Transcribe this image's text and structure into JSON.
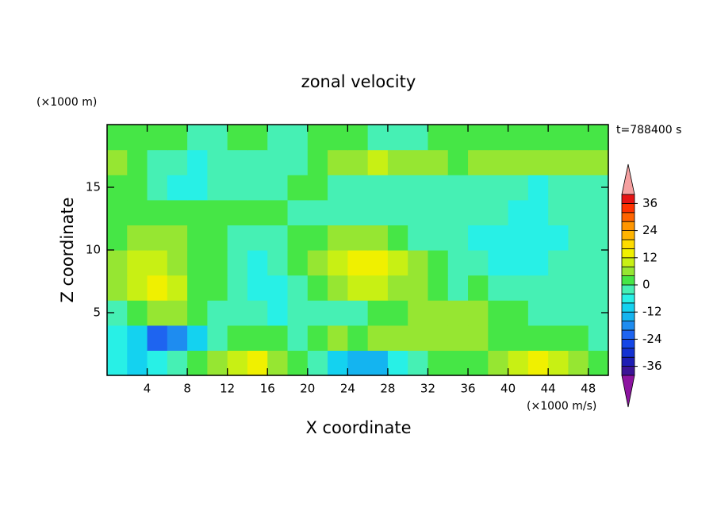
{
  "chart_data": {
    "type": "contour",
    "title": "zonal velocity",
    "xlabel": "X coordinate",
    "ylabel": "Z coordinate",
    "y_unit": "(×1000 m)",
    "colorbar_unit": "(×1000 m/s)",
    "annotation": "t=788400 s",
    "x": [
      1,
      3,
      5,
      7,
      9,
      11,
      13,
      15,
      17,
      19,
      21,
      23,
      25,
      27,
      29,
      31,
      33,
      35,
      37,
      39,
      41,
      43,
      45,
      47,
      49
    ],
    "y": [
      1,
      3,
      5,
      7,
      9,
      11,
      13,
      15,
      17,
      19
    ],
    "z": [
      [
        -6,
        -10,
        -6,
        -2,
        2,
        6,
        10,
        14,
        6,
        2,
        -2,
        -10,
        -14,
        -14,
        -6,
        -2,
        2,
        2,
        2,
        6,
        10,
        14,
        10,
        6,
        2
      ],
      [
        -6,
        -10,
        -22,
        -18,
        -10,
        -2,
        2,
        2,
        2,
        -2,
        2,
        6,
        2,
        6,
        6,
        6,
        6,
        6,
        6,
        2,
        2,
        2,
        2,
        2,
        -2
      ],
      [
        -2,
        2,
        6,
        6,
        2,
        -2,
        -2,
        -2,
        -6,
        -2,
        -2,
        -2,
        -2,
        2,
        2,
        6,
        6,
        6,
        6,
        2,
        2,
        -2,
        -2,
        -2,
        -2
      ],
      [
        6,
        10,
        14,
        10,
        2,
        2,
        -2,
        -6,
        -6,
        -2,
        2,
        6,
        10,
        10,
        6,
        6,
        2,
        -2,
        2,
        -2,
        -2,
        -2,
        -2,
        -2,
        -2
      ],
      [
        6,
        10,
        10,
        6,
        2,
        2,
        -2,
        -6,
        -2,
        2,
        6,
        10,
        14,
        14,
        10,
        6,
        2,
        -2,
        -2,
        -6,
        -6,
        -6,
        -2,
        -2,
        -2
      ],
      [
        2,
        6,
        6,
        6,
        2,
        2,
        -2,
        -2,
        -2,
        2,
        2,
        6,
        6,
        6,
        2,
        -2,
        -2,
        -2,
        -6,
        -6,
        -6,
        -6,
        -6,
        -2,
        -2
      ],
      [
        2,
        2,
        2,
        2,
        2,
        2,
        2,
        2,
        2,
        -2,
        -2,
        -2,
        -2,
        -2,
        -2,
        -2,
        -2,
        -2,
        -2,
        -2,
        -6,
        -6,
        -2,
        -2,
        -2
      ],
      [
        2,
        2,
        -2,
        -6,
        -6,
        -2,
        -2,
        -2,
        -2,
        2,
        2,
        -2,
        -2,
        -2,
        -2,
        -2,
        -2,
        -2,
        -2,
        -2,
        -2,
        -6,
        -2,
        -2,
        -2
      ],
      [
        6,
        2,
        -2,
        -2,
        -6,
        -2,
        -2,
        -2,
        -2,
        -2,
        2,
        6,
        6,
        10,
        6,
        6,
        6,
        2,
        6,
        6,
        6,
        6,
        6,
        6,
        6
      ],
      [
        2,
        2,
        2,
        2,
        -2,
        -2,
        2,
        2,
        -2,
        -2,
        2,
        2,
        2,
        -2,
        -2,
        -2,
        2,
        2,
        2,
        2,
        2,
        2,
        2,
        2,
        2
      ]
    ],
    "xlim": [
      0,
      50
    ],
    "ylim": [
      0,
      20
    ],
    "xticks": [
      4,
      8,
      12,
      16,
      20,
      24,
      28,
      32,
      36,
      40,
      44,
      48
    ],
    "yticks": [
      5,
      10,
      15
    ],
    "levels": [
      -40,
      -36,
      -32,
      -28,
      -24,
      -20,
      -16,
      -12,
      -8,
      -4,
      0,
      4,
      8,
      12,
      16,
      20,
      24,
      28,
      32,
      36,
      40
    ],
    "colors": [
      "#8c14a0",
      "#3c1496",
      "#1e1eb4",
      "#1432d2",
      "#1446e6",
      "#1e64f0",
      "#1e8cf0",
      "#14b4f0",
      "#14d2f0",
      "#28f0e6",
      "#46f0b4",
      "#46e646",
      "#96e632",
      "#c8f014",
      "#f0f000",
      "#ffdc00",
      "#ffb400",
      "#ff9600",
      "#ff6400",
      "#ff3200",
      "#e61414",
      "#f5a0a0"
    ],
    "colorbar_ticks": [
      -36,
      -24,
      -12,
      0,
      12,
      24,
      36
    ]
  }
}
